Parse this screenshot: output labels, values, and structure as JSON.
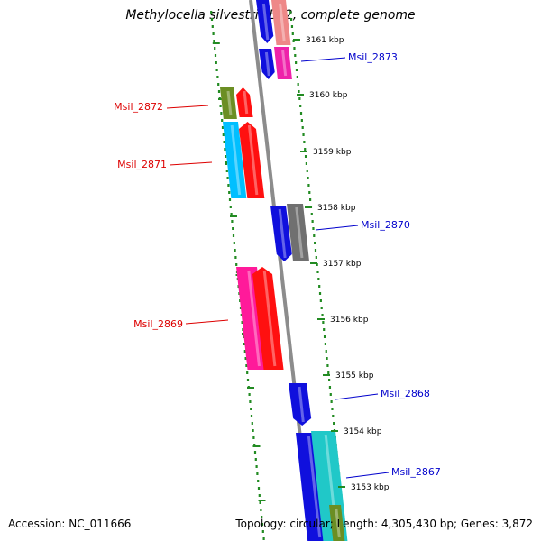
{
  "title": "Methylocella silvestris BL2, complete genome",
  "accession": "Accession: NC_011666",
  "summary": "Topology: circular; Length: 4,305,430 bp; Genes: 3,872",
  "colors": {
    "backbone": "#8c8c8c",
    "dots": "#228b22",
    "forward_label": "#0000cc",
    "reverse_label": "#dd0000"
  },
  "ticks": [
    {
      "label": "3161 kbp",
      "kbp": 3161
    },
    {
      "label": "3160 kbp",
      "kbp": 3160
    },
    {
      "label": "3159 kbp",
      "kbp": 3159
    },
    {
      "label": "3158 kbp",
      "kbp": 3158
    },
    {
      "label": "3157 kbp",
      "kbp": 3157
    },
    {
      "label": "3156 kbp",
      "kbp": 3156
    },
    {
      "label": "3155 kbp",
      "kbp": 3155
    },
    {
      "label": "3154 kbp",
      "kbp": 3154
    },
    {
      "label": "3153 kbp",
      "kbp": 3153
    }
  ],
  "gene_labels": [
    {
      "id": "Msil_2873",
      "strand": "forward"
    },
    {
      "id": "Msil_2872",
      "strand": "reverse"
    },
    {
      "id": "Msil_2871",
      "strand": "reverse"
    },
    {
      "id": "Msil_2870",
      "strand": "forward"
    },
    {
      "id": "Msil_2869",
      "strand": "reverse"
    },
    {
      "id": "Msil_2868",
      "strand": "forward"
    },
    {
      "id": "Msil_2867",
      "strand": "forward"
    }
  ]
}
